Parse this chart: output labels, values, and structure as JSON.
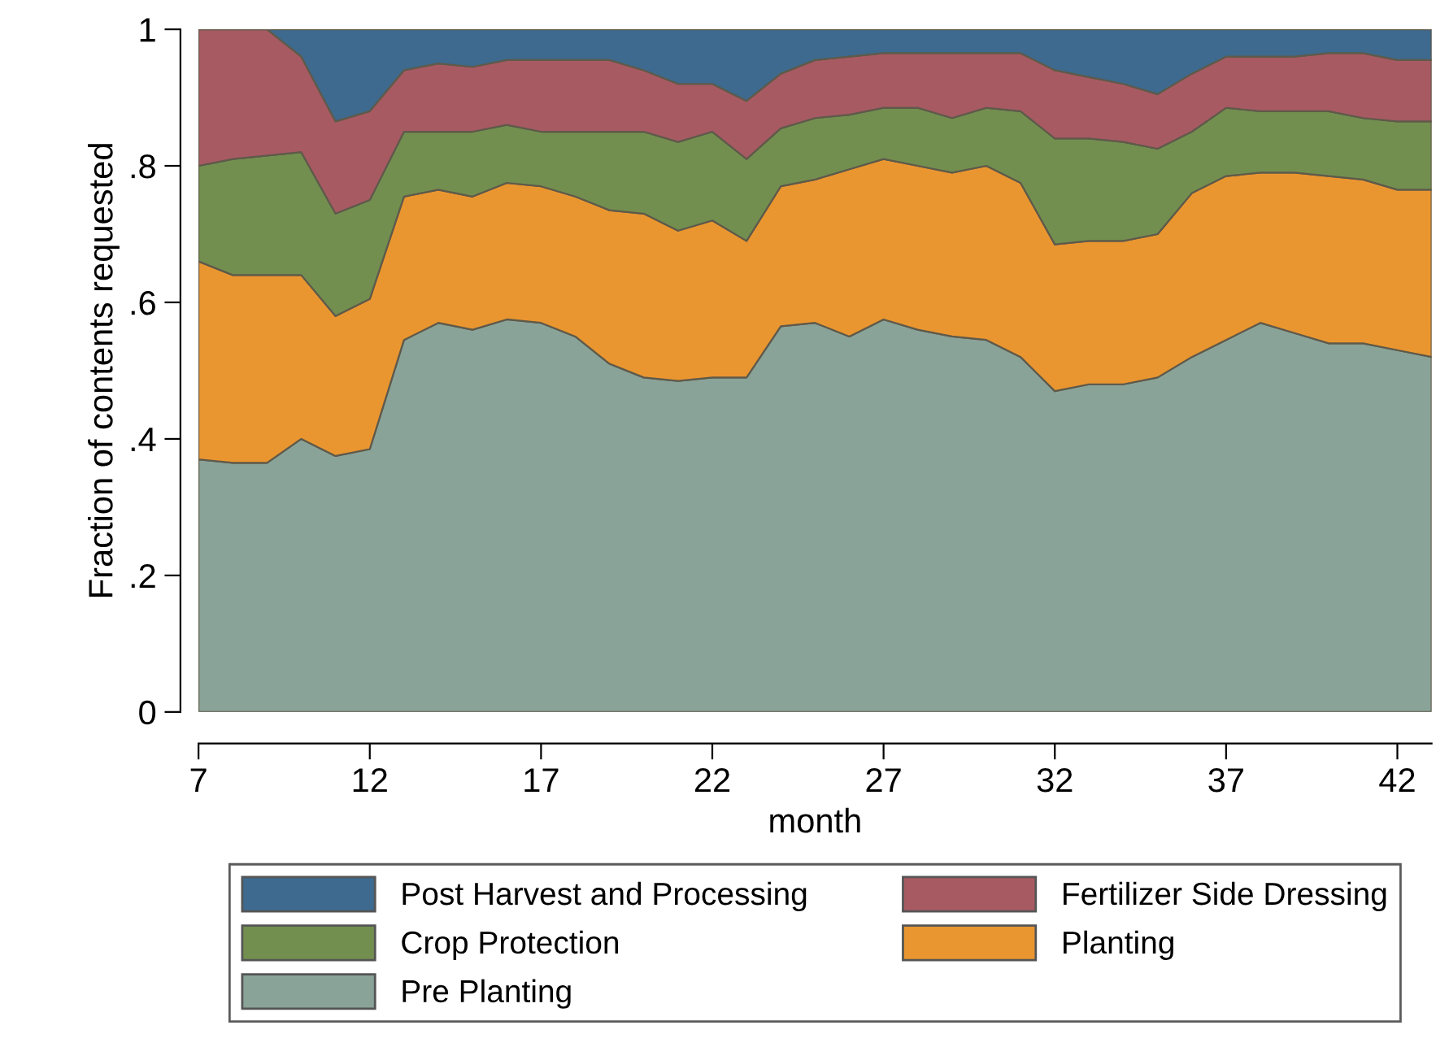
{
  "chart_data": {
    "type": "area",
    "stacked": true,
    "xlabel": "month",
    "ylabel": "Fraction of contents requested",
    "x": [
      7,
      8,
      9,
      10,
      11,
      12,
      13,
      14,
      15,
      16,
      17,
      18,
      19,
      20,
      21,
      22,
      23,
      24,
      25,
      26,
      27,
      28,
      29,
      30,
      31,
      32,
      33,
      34,
      35,
      36,
      37,
      38,
      39,
      40,
      41,
      42,
      43
    ],
    "series": [
      {
        "name": "Pre Planting",
        "color": "#8aa399",
        "values": [
          0.37,
          0.365,
          0.365,
          0.4,
          0.375,
          0.385,
          0.545,
          0.57,
          0.56,
          0.575,
          0.57,
          0.55,
          0.51,
          0.49,
          0.485,
          0.49,
          0.49,
          0.565,
          0.57,
          0.55,
          0.575,
          0.56,
          0.55,
          0.545,
          0.52,
          0.47,
          0.48,
          0.48,
          0.49,
          0.52,
          0.545,
          0.57,
          0.555,
          0.54,
          0.54,
          0.53,
          0.52
        ]
      },
      {
        "name": "Planting",
        "color": "#ea9630",
        "values": [
          0.29,
          0.275,
          0.275,
          0.24,
          0.205,
          0.22,
          0.21,
          0.195,
          0.195,
          0.2,
          0.2,
          0.205,
          0.225,
          0.24,
          0.22,
          0.23,
          0.2,
          0.205,
          0.21,
          0.245,
          0.235,
          0.24,
          0.24,
          0.255,
          0.255,
          0.215,
          0.21,
          0.21,
          0.21,
          0.24,
          0.24,
          0.22,
          0.235,
          0.245,
          0.24,
          0.235,
          0.245
        ]
      },
      {
        "name": "Crop Protection",
        "color": "#738f50",
        "values": [
          0.14,
          0.17,
          0.175,
          0.18,
          0.15,
          0.145,
          0.095,
          0.085,
          0.095,
          0.085,
          0.08,
          0.095,
          0.115,
          0.12,
          0.13,
          0.13,
          0.12,
          0.085,
          0.09,
          0.08,
          0.075,
          0.085,
          0.08,
          0.085,
          0.105,
          0.155,
          0.15,
          0.145,
          0.125,
          0.09,
          0.1,
          0.09,
          0.09,
          0.095,
          0.09,
          0.1,
          0.1
        ]
      },
      {
        "name": "Fertilizer Side Dressing",
        "color": "#a85a63",
        "values": [
          0.2,
          0.19,
          0.185,
          0.14,
          0.135,
          0.13,
          0.09,
          0.1,
          0.095,
          0.095,
          0.105,
          0.105,
          0.105,
          0.09,
          0.085,
          0.07,
          0.085,
          0.08,
          0.085,
          0.085,
          0.08,
          0.08,
          0.095,
          0.08,
          0.085,
          0.1,
          0.09,
          0.085,
          0.08,
          0.085,
          0.075,
          0.08,
          0.08,
          0.085,
          0.095,
          0.09,
          0.09
        ]
      },
      {
        "name": "Post Harvest and Processing",
        "color": "#3d6a8e",
        "values": [
          0,
          0,
          0,
          0.04,
          0.135,
          0.12,
          0.06,
          0.05,
          0.055,
          0.045,
          0.045,
          0.045,
          0.045,
          0.06,
          0.08,
          0.08,
          0.105,
          0.065,
          0.045,
          0.04,
          0.035,
          0.035,
          0.035,
          0.035,
          0.035,
          0.06,
          0.07,
          0.08,
          0.095,
          0.065,
          0.04,
          0.04,
          0.04,
          0.035,
          0.035,
          0.045,
          0.045
        ]
      }
    ],
    "xlim": [
      7,
      43
    ],
    "xticks": [
      7,
      12,
      17,
      22,
      27,
      32,
      37,
      42
    ],
    "ylim": [
      0,
      1
    ],
    "yticks": [
      0,
      {
        "value": 0.2,
        "label": ".2"
      },
      {
        "value": 0.4,
        "label": ".4"
      },
      {
        "value": 0.6,
        "label": ".6"
      },
      {
        "value": 0.8,
        "label": ".8"
      },
      1
    ],
    "legend": "bottom",
    "grid": false
  }
}
